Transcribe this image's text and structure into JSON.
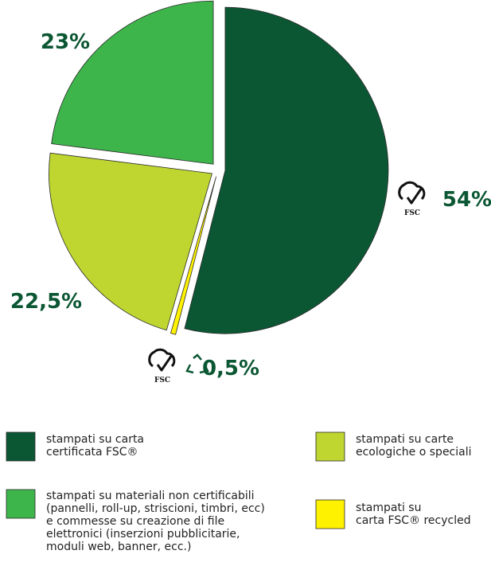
{
  "chart_data": {
    "type": "pie",
    "categories": [
      "stampati su carta\ncertificata FSC®",
      "stampati su\ncarta FSC® recycled",
      "stampati su carte\necologiche o speciali",
      "stampati su materiali non certificabili\n(pannelli, roll-up, striscioni, timbri, ecc)\ne commesse su creazione di file\nelettronici (inserzioni pubblicitarie,\nmoduli web, banner, ecc.)"
    ],
    "values": [
      54,
      0.5,
      22.5,
      23
    ],
    "value_labels": [
      "54%",
      "0,5%",
      "22,5%",
      "23%"
    ],
    "colors": [
      "#0b5733",
      "#fff200",
      "#bfd630",
      "#3db54a"
    ],
    "icon_label": "FSC"
  }
}
